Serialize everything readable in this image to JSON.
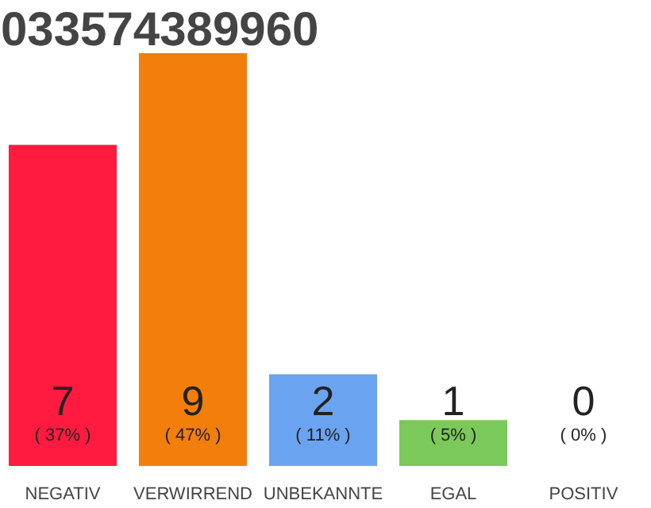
{
  "chart_data": {
    "type": "bar",
    "title": "033574389960",
    "categories": [
      "NEGATIV",
      "VERWIRREND",
      "UNBEKANNTE",
      "EGAL",
      "POSITIV"
    ],
    "values": [
      7,
      9,
      2,
      1,
      0
    ],
    "colors": [
      "#ff1a40",
      "#f27e0c",
      "#6aa4f0",
      "#7bc95a",
      "#efefef"
    ],
    "data_labels": true,
    "annotations": [
      "( 37% )",
      "( 47% )",
      "( 11% )",
      "( 5% )",
      "( 0% )"
    ],
    "tick_labels": "x",
    "grid": false
  }
}
